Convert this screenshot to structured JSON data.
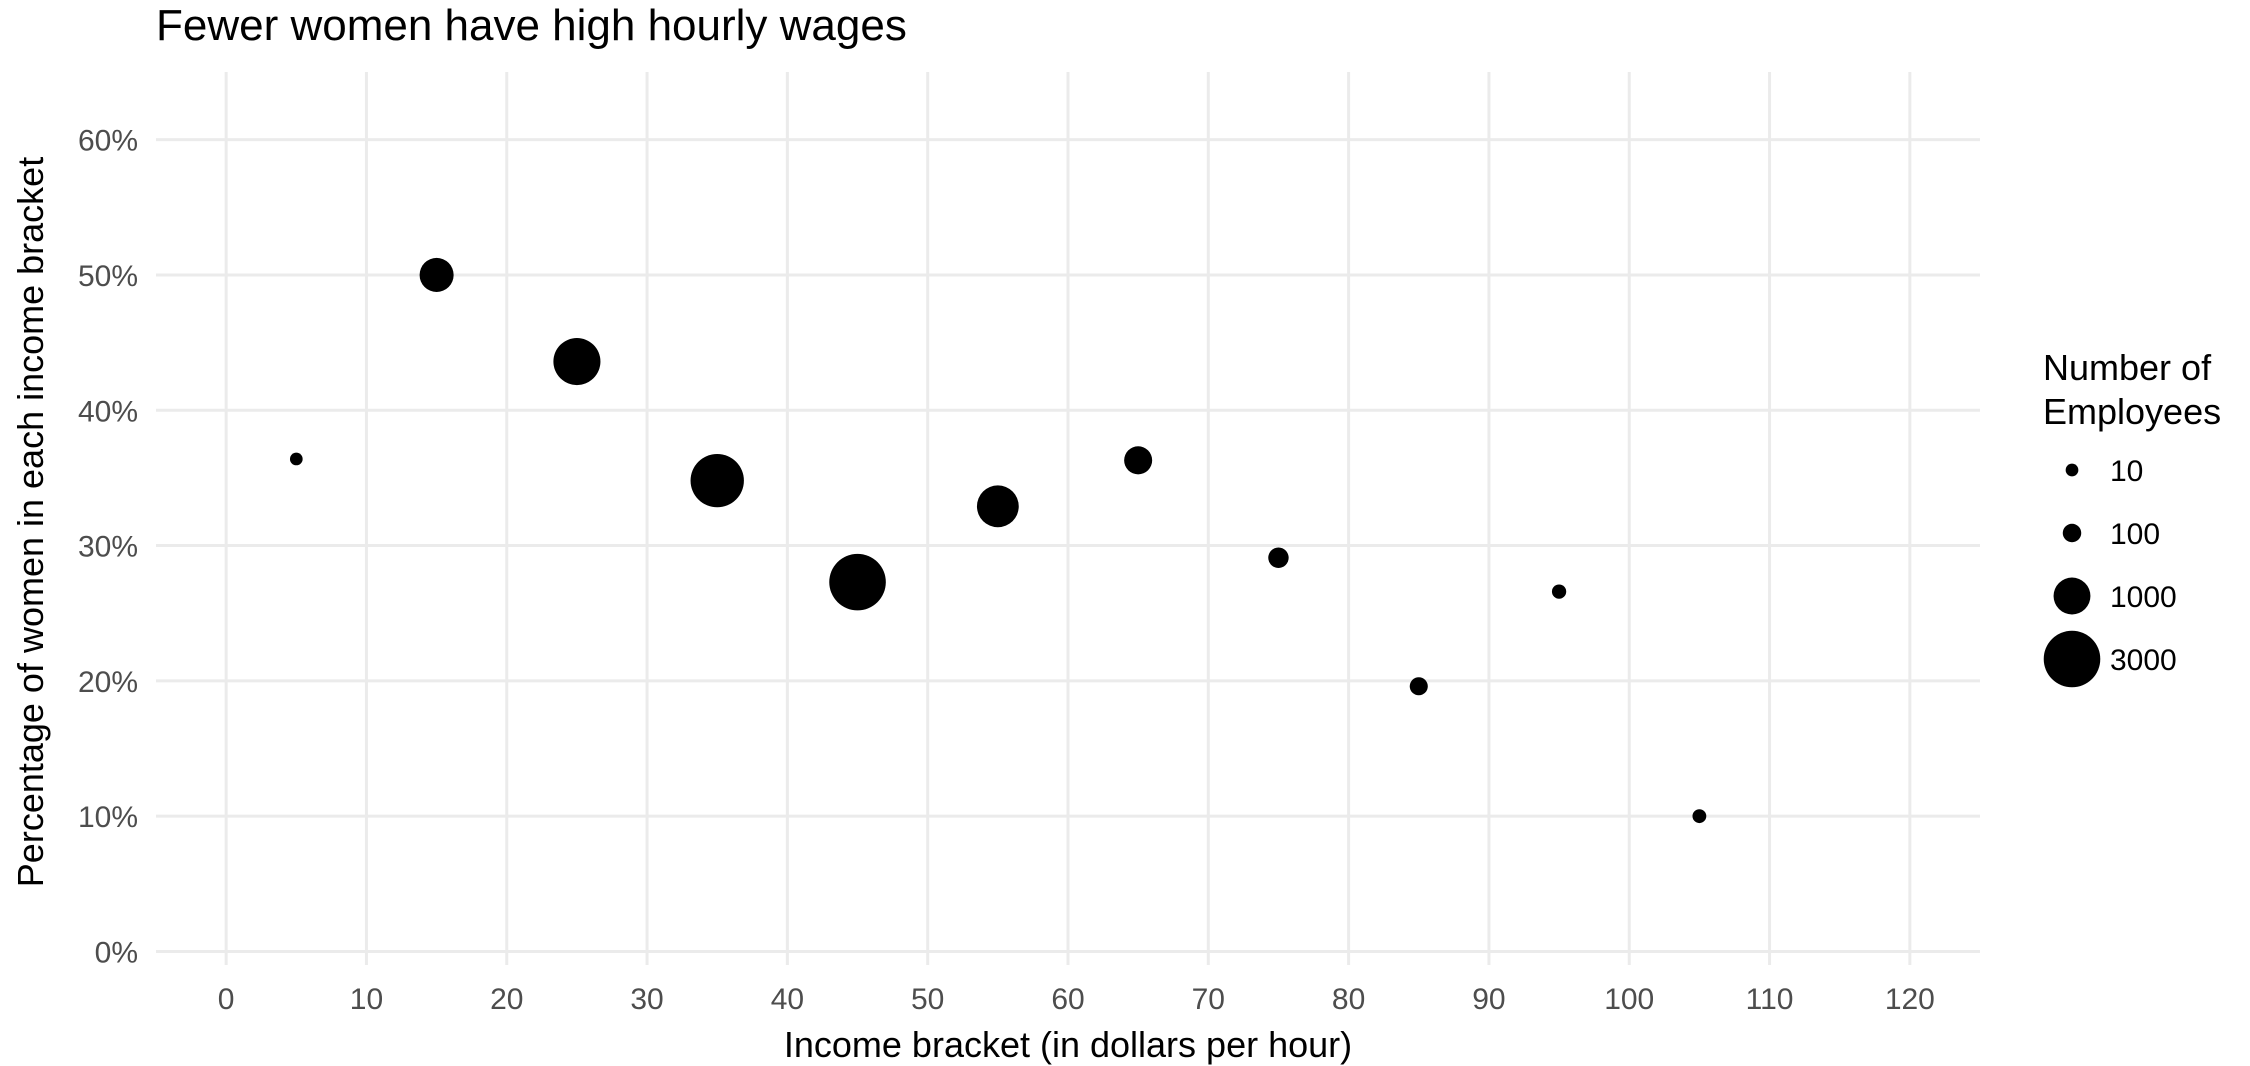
{
  "chart_data": {
    "type": "scatter",
    "title": "Fewer women have high hourly wages",
    "xlabel": "Income bracket (in dollars per hour)",
    "ylabel": "Percentage of women in each income bracket",
    "xlim": [
      -5,
      125
    ],
    "ylim": [
      -0.01,
      0.65
    ],
    "x_ticks": [
      0,
      10,
      20,
      30,
      40,
      50,
      60,
      70,
      80,
      90,
      100,
      110,
      120
    ],
    "x_tick_labels": [
      "0",
      "10",
      "20",
      "30",
      "40",
      "50",
      "60",
      "70",
      "80",
      "90",
      "100",
      "110",
      "120"
    ],
    "y_ticks": [
      0,
      0.1,
      0.2,
      0.3,
      0.4,
      0.5,
      0.6
    ],
    "y_tick_labels": [
      "0%",
      "10%",
      "20%",
      "30%",
      "40%",
      "50%",
      "60%"
    ],
    "grid": true,
    "legend_position": "right",
    "legend": {
      "title_lines": [
        "Number of",
        "Employees"
      ],
      "entries": [
        {
          "label": "10",
          "size_value": 10
        },
        {
          "label": "100",
          "size_value": 100
        },
        {
          "label": "1000",
          "size_value": 1000
        },
        {
          "label": "3000",
          "size_value": 3000
        }
      ]
    },
    "point_color": "#000000",
    "points": [
      {
        "x": 5,
        "y": 0.364,
        "size": 10
      },
      {
        "x": 15,
        "y": 0.5,
        "size": 800
      },
      {
        "x": 25,
        "y": 0.436,
        "size": 1900
      },
      {
        "x": 35,
        "y": 0.348,
        "size": 2600
      },
      {
        "x": 45,
        "y": 0.273,
        "size": 3000
      },
      {
        "x": 55,
        "y": 0.329,
        "size": 1400
      },
      {
        "x": 65,
        "y": 0.363,
        "size": 450
      },
      {
        "x": 75,
        "y": 0.291,
        "size": 150
      },
      {
        "x": 85,
        "y": 0.196,
        "size": 90
      },
      {
        "x": 95,
        "y": 0.266,
        "size": 25
      },
      {
        "x": 105,
        "y": 0.1,
        "size": 20
      }
    ]
  }
}
